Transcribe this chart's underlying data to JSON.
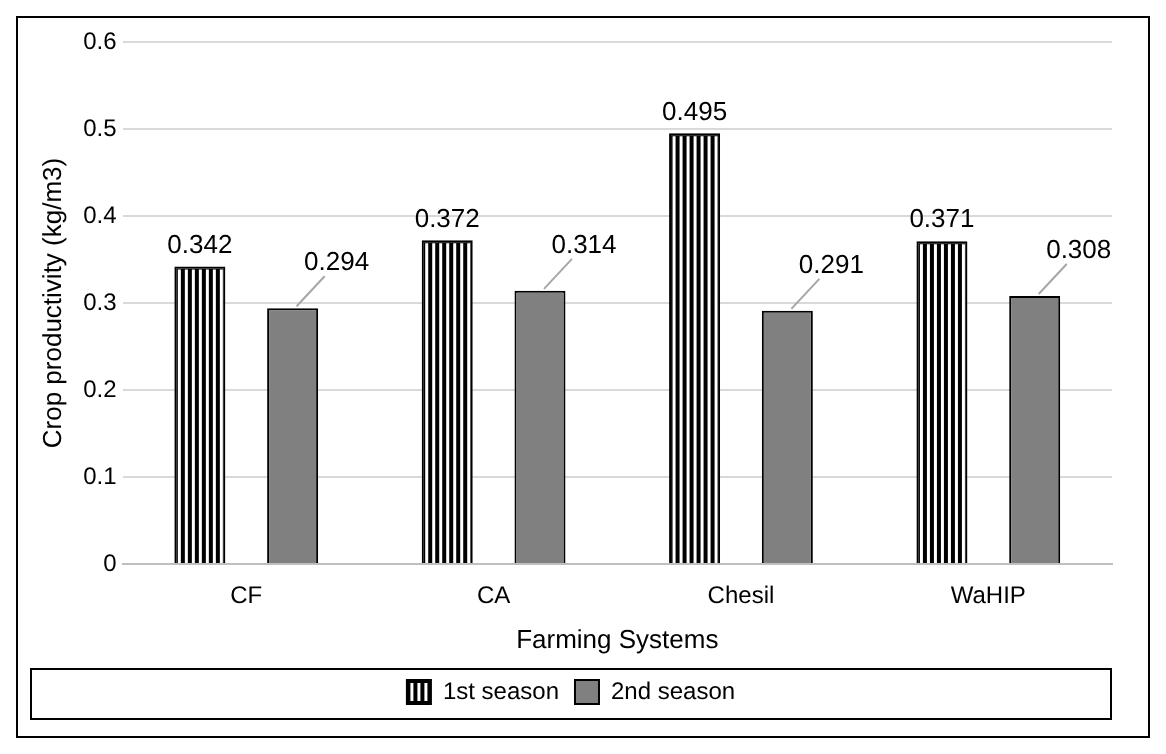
{
  "chart_data": {
    "type": "bar",
    "xlabel": "Farming Systems",
    "ylabel": "Crop productivity (kg/m3)",
    "categories": [
      "CF",
      "CA",
      "Chesil",
      "WaHIP"
    ],
    "series": [
      {
        "name": "1st season",
        "color": "#000000",
        "values": [
          0.342,
          0.372,
          0.495,
          0.371
        ]
      },
      {
        "name": "2nd season",
        "color": "#808080",
        "values": [
          0.294,
          0.314,
          0.291,
          0.308
        ]
      }
    ],
    "ylim": [
      0,
      0.6
    ],
    "yticks": [
      {
        "value": 0,
        "label": "0"
      },
      0.1,
      0.2,
      0.3,
      0.4,
      0.5,
      0.6
    ],
    "grid": "y",
    "legend": "bottom",
    "data_labels": true
  }
}
